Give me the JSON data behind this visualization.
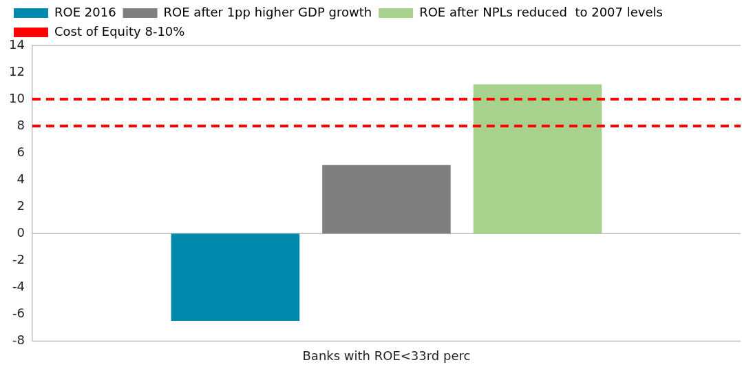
{
  "chart_data": {
    "type": "bar",
    "categories": [
      "Banks with ROE<33rd perc"
    ],
    "series": [
      {
        "name": "ROE 2016",
        "color": "#0089ad",
        "values": [
          -6.5
        ]
      },
      {
        "name": "ROE after 1pp higher GDP growth",
        "color": "#7f7f7f",
        "values": [
          5.1
        ]
      },
      {
        "name": "ROE after NPLs reduced  to 2007 levels",
        "color": "#a9d18e",
        "values": [
          11.1
        ]
      }
    ],
    "ylim": [
      -8,
      14
    ],
    "yticks": [
      -8,
      -6,
      -4,
      -2,
      0,
      2,
      4,
      6,
      8,
      10,
      12,
      14
    ],
    "grid": false,
    "legend": "top",
    "ref_lines": [
      {
        "axis": "y",
        "value": 8,
        "label": "Cost of Equity 8-10%",
        "color": "#ff0000",
        "line_style": "dashed"
      },
      {
        "axis": "y",
        "value": 10,
        "color": "#ff0000",
        "line_style": "dashed"
      }
    ]
  }
}
